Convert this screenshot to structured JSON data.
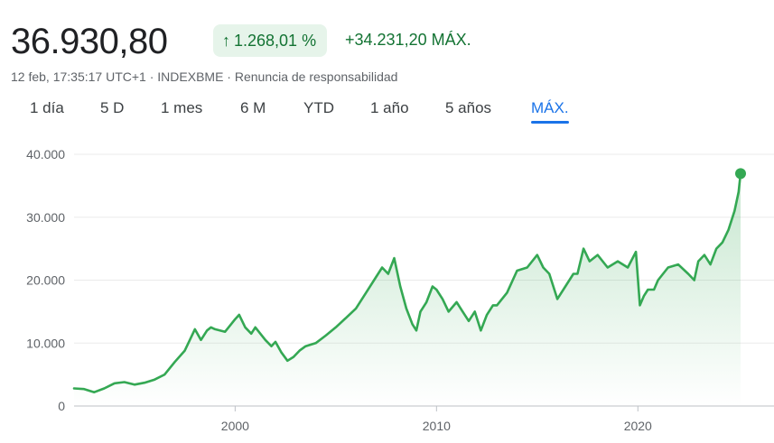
{
  "header": {
    "price": "36.930,80",
    "change_pct": "1.268,01 %",
    "change_abs": "+34.231,20 MÁX.",
    "timestamp": "12 feb, 17:35:17 UTC+1",
    "exchange": "INDEXBME",
    "disclaimer": "Renuncia de responsabilidad",
    "separator": " · "
  },
  "tabs": [
    {
      "label": "1 día",
      "active": false
    },
    {
      "label": "5 D",
      "active": false
    },
    {
      "label": "1 mes",
      "active": false
    },
    {
      "label": "6 M",
      "active": false
    },
    {
      "label": "YTD",
      "active": false
    },
    {
      "label": "1 año",
      "active": false
    },
    {
      "label": "5 años",
      "active": false
    },
    {
      "label": "MÁX.",
      "active": true
    }
  ],
  "colors": {
    "positive": "#34a853",
    "positive_text": "#137333",
    "badge_bg": "#e6f4ea",
    "accent": "#1a73e8",
    "grid": "#ebebeb"
  },
  "chart_data": {
    "type": "area",
    "title": "",
    "xlabel": "",
    "ylabel": "",
    "x_ticks": [
      2000,
      2010,
      2020
    ],
    "y_ticks": [
      0,
      10000,
      20000,
      30000,
      40000
    ],
    "y_tick_labels": [
      "0",
      "10.000",
      "20.000",
      "30.000",
      "40.000"
    ],
    "xlim": [
      1992,
      2025.1
    ],
    "ylim": [
      0,
      40000
    ],
    "grid": true,
    "series": [
      {
        "x": [
          1992.0,
          1992.5,
          1993.0,
          1993.5,
          1994.0,
          1994.5,
          1995.0,
          1995.5,
          1996.0,
          1996.5,
          1997.0,
          1997.5,
          1998.0,
          1998.3,
          1998.6,
          1998.8,
          1999.0,
          1999.5,
          2000.0,
          2000.2,
          2000.5,
          2000.8,
          2001.0,
          2001.5,
          2001.8,
          2002.0,
          2002.3,
          2002.6,
          2002.9,
          2003.2,
          2003.5,
          2004.0,
          2004.5,
          2005.0,
          2005.5,
          2006.0,
          2006.5,
          2007.0,
          2007.3,
          2007.6,
          2007.9,
          2008.2,
          2008.5,
          2008.8,
          2009.0,
          2009.2,
          2009.5,
          2009.8,
          2010.0,
          2010.3,
          2010.6,
          2011.0,
          2011.3,
          2011.6,
          2011.9,
          2012.2,
          2012.5,
          2012.8,
          2013.0,
          2013.5,
          2014.0,
          2014.5,
          2015.0,
          2015.3,
          2015.6,
          2016.0,
          2016.4,
          2016.8,
          2017.0,
          2017.3,
          2017.6,
          2018.0,
          2018.5,
          2019.0,
          2019.5,
          2019.9,
          2020.1,
          2020.3,
          2020.5,
          2020.8,
          2021.0,
          2021.5,
          2022.0,
          2022.5,
          2022.8,
          2023.0,
          2023.3,
          2023.6,
          2023.9,
          2024.2,
          2024.5,
          2024.8,
          2025.0,
          2025.1
        ],
        "y": [
          2800,
          2700,
          2200,
          2800,
          3600,
          3800,
          3400,
          3700,
          4200,
          5000,
          7000,
          8800,
          12200,
          10500,
          12000,
          12500,
          12200,
          11800,
          13800,
          14500,
          12500,
          11500,
          12500,
          10500,
          9500,
          10200,
          8500,
          7200,
          7800,
          8800,
          9500,
          10000,
          11200,
          12500,
          14000,
          15500,
          18000,
          20500,
          22000,
          21000,
          23500,
          19000,
          15500,
          13000,
          12000,
          15000,
          16500,
          19000,
          18500,
          17000,
          15000,
          16500,
          15000,
          13500,
          15000,
          12000,
          14500,
          16000,
          16000,
          18000,
          21500,
          22000,
          24000,
          22000,
          21000,
          17000,
          19000,
          21000,
          21000,
          25000,
          23000,
          24000,
          22000,
          23000,
          22000,
          24500,
          16000,
          17500,
          18500,
          18500,
          20000,
          22000,
          22500,
          21000,
          20000,
          23000,
          24000,
          22500,
          25000,
          26000,
          28000,
          31000,
          34000,
          36930
        ]
      }
    ]
  }
}
